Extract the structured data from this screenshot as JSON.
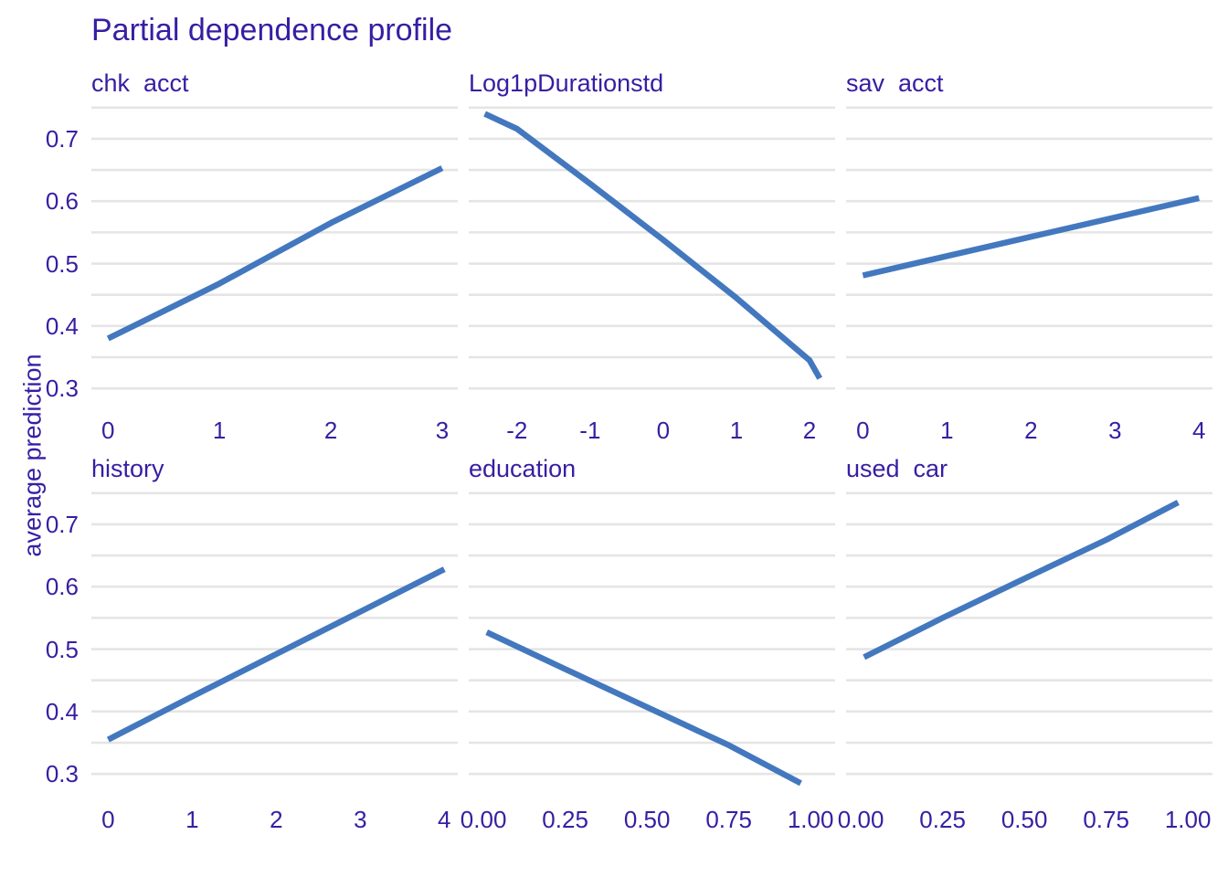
{
  "chart_data": {
    "type": "line",
    "title": "Partial dependence profile",
    "ylabel": "average prediction",
    "xlabel": "",
    "legend": "none",
    "grid": "horizontal-only",
    "colors": {
      "text": "#371ea3",
      "line": "#4378bf",
      "gridline": "#e5e5e5",
      "background": "#ffffff"
    },
    "y_axis": {
      "ylim": [
        0.268,
        0.757
      ],
      "ticks": [
        0.7,
        0.6,
        0.5,
        0.4,
        0.3
      ],
      "tick_labels": [
        "0.7",
        "0.6",
        "0.5",
        "0.4",
        "0.3"
      ],
      "grid_values": [
        0.3,
        0.35,
        0.4,
        0.45,
        0.5,
        0.55,
        0.6,
        0.65,
        0.7,
        0.75
      ]
    },
    "panels": [
      {
        "label": "chk  acct",
        "row": 0,
        "col": 0,
        "xlim": [
          -0.15,
          3.14
        ],
        "x_ticks": [
          0,
          1,
          2,
          3
        ],
        "x_tick_labels": [
          "0",
          "1",
          "2",
          "3"
        ],
        "x": [
          0,
          1,
          2,
          3
        ],
        "y": [
          0.38,
          0.468,
          0.565,
          0.653
        ]
      },
      {
        "label": "Log1pDurationstd",
        "row": 0,
        "col": 1,
        "xlim": [
          -2.66,
          2.35
        ],
        "x_ticks": [
          -2,
          -1,
          0,
          1,
          2
        ],
        "x_tick_labels": [
          "-2",
          "-1",
          "0",
          "1",
          "2"
        ],
        "x": [
          -2.44,
          -2,
          -1,
          0,
          1,
          2,
          2.14
        ],
        "y": [
          0.74,
          0.716,
          0.628,
          0.538,
          0.445,
          0.345,
          0.316
        ]
      },
      {
        "label": "sav  acct",
        "row": 0,
        "col": 2,
        "xlim": [
          -0.2,
          4.16
        ],
        "x_ticks": [
          0,
          1,
          2,
          3,
          4
        ],
        "x_tick_labels": [
          "0",
          "1",
          "2",
          "3",
          "4"
        ],
        "x": [
          0,
          1,
          2,
          3,
          4
        ],
        "y": [
          0.481,
          0.512,
          0.543,
          0.574,
          0.605
        ]
      },
      {
        "label": "history",
        "row": 1,
        "col": 0,
        "xlim": [
          -0.2,
          4.16
        ],
        "x_ticks": [
          0,
          1,
          2,
          3,
          4
        ],
        "x_tick_labels": [
          "0",
          "1",
          "2",
          "3",
          "4"
        ],
        "x": [
          0,
          1,
          2,
          3,
          4
        ],
        "y": [
          0.355,
          0.424,
          0.492,
          0.56,
          0.628
        ]
      },
      {
        "label": "education",
        "row": 1,
        "col": 1,
        "xlim": [
          -0.045,
          1.075
        ],
        "x_ticks": [
          0,
          0.25,
          0.5,
          0.75,
          1
        ],
        "x_tick_labels": [
          "0.00",
          "0.25",
          "0.50",
          "0.75",
          "1.00"
        ],
        "x": [
          0.01,
          0.25,
          0.5,
          0.75,
          0.97
        ],
        "y": [
          0.527,
          0.468,
          0.407,
          0.346,
          0.285
        ]
      },
      {
        "label": "used  car",
        "row": 1,
        "col": 2,
        "xlim": [
          -0.045,
          1.075
        ],
        "x_ticks": [
          0,
          0.25,
          0.5,
          0.75,
          1
        ],
        "x_tick_labels": [
          "0.00",
          "0.25",
          "0.50",
          "0.75",
          "1.00"
        ],
        "x": [
          0.01,
          0.25,
          0.5,
          0.75,
          0.97
        ],
        "y": [
          0.487,
          0.55,
          0.613,
          0.675,
          0.735
        ]
      }
    ]
  }
}
